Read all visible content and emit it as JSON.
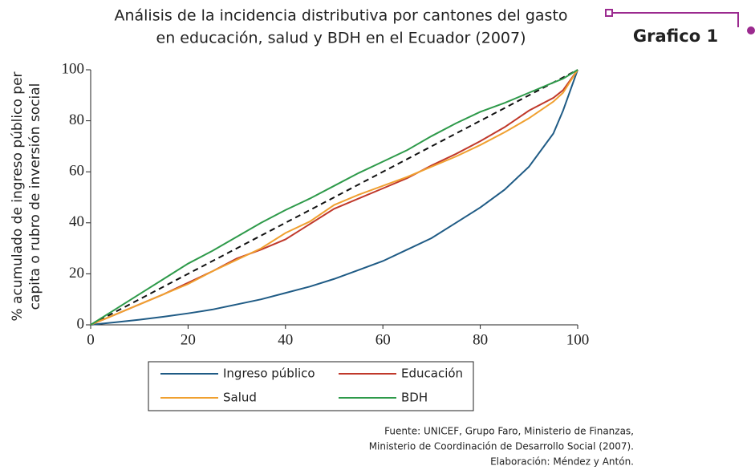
{
  "chart_data": {
    "type": "line",
    "title": [
      "Análisis de la incidencia distributiva por cantones del gasto",
      "en educación, salud y BDH en el Ecuador (2007)"
    ],
    "badge": "Grafico 1",
    "y_label": [
      "% acumulado de ingreso público per",
      "capita o rubro de inversión social"
    ],
    "source": [
      "Fuente:  UNICEF, Grupo Faro, Ministerio de Finanzas,",
      "Ministerio de Coordinación de Desarrollo Social (2007).",
      "Elaboración: Méndez y Antón."
    ],
    "x": [
      0,
      5,
      10,
      15,
      20,
      25,
      30,
      35,
      40,
      45,
      50,
      55,
      60,
      65,
      70,
      75,
      80,
      85,
      90,
      95,
      97,
      100
    ],
    "series": [
      {
        "name": "Ingreso público",
        "color": "#1f5b85",
        "values": [
          0,
          1,
          2,
          3.2,
          4.5,
          6,
          8,
          10,
          12.5,
          15,
          18,
          21.5,
          25,
          29.5,
          34,
          40,
          46,
          53,
          62,
          75,
          84,
          100
        ]
      },
      {
        "name": "Educación",
        "color": "#c0392b",
        "values": [
          0,
          4,
          8,
          12,
          16.5,
          21,
          26,
          29.5,
          33.5,
          39.5,
          45.5,
          49.5,
          53.5,
          57.5,
          62.5,
          67,
          72,
          77.5,
          84,
          89,
          92,
          100
        ]
      },
      {
        "name": "Salud",
        "color": "#f0a030",
        "values": [
          0,
          4,
          8,
          12,
          16,
          21,
          25.5,
          30,
          36,
          40.5,
          47,
          51,
          54.5,
          58,
          62,
          66,
          70.5,
          75.5,
          81,
          87.5,
          91,
          100
        ]
      },
      {
        "name": "BDH",
        "color": "#2e9a4a",
        "values": [
          0,
          6,
          12,
          18,
          24,
          29,
          34.5,
          40,
          45,
          49.5,
          54.5,
          59.5,
          64,
          68.5,
          74,
          79,
          83.5,
          87,
          91,
          95,
          96.5,
          100
        ]
      }
    ],
    "xlim": [
      0,
      100
    ],
    "ylim": [
      0,
      100
    ],
    "xticks": [
      0,
      20,
      40,
      60,
      80,
      100
    ],
    "yticks": [
      0,
      20,
      40,
      60,
      80,
      100
    ]
  }
}
